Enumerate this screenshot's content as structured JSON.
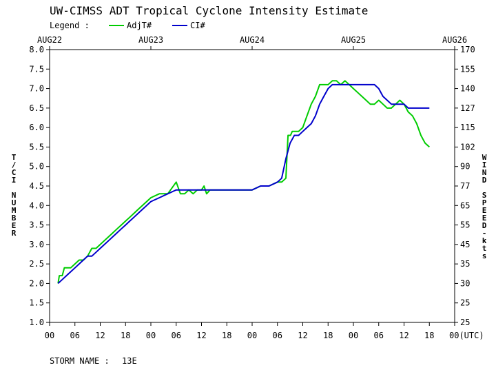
{
  "chart_data": {
    "type": "line",
    "title": "UW-CIMSS ADT Tropical Cyclone Intensity Estimate",
    "legend": {
      "label": "Legend :",
      "placement": "top-left",
      "entries": [
        {
          "name": "AdjT#",
          "color": "#00cc00"
        },
        {
          "name": "CI#",
          "color": "#0000cc"
        }
      ]
    },
    "ylabel": "T/CI NUMBER",
    "y2label": "WIND SPEED-kts",
    "xlabel_suffix": "(UTC)",
    "ylim": [
      1.0,
      8.0
    ],
    "xlim_hours": [
      0,
      96
    ],
    "date_labels": [
      "AUG22",
      "AUG23",
      "AUG24",
      "AUG25",
      "AUG26"
    ],
    "x_tick_labels": [
      "00",
      "06",
      "12",
      "18",
      "00",
      "06",
      "12",
      "18",
      "00",
      "06",
      "12",
      "18",
      "00",
      "06",
      "12",
      "18",
      "00"
    ],
    "y_tick_labels": [
      "1.0",
      "1.5",
      "2.0",
      "2.5",
      "3.0",
      "3.5",
      "4.0",
      "4.5",
      "5.0",
      "5.5",
      "6.0",
      "6.5",
      "7.0",
      "7.5",
      "8.0"
    ],
    "y2_tick_labels": [
      "25",
      "25",
      "30",
      "35",
      "45",
      "55",
      "65",
      "77",
      "90",
      "102",
      "115",
      "127",
      "140",
      "155",
      "170"
    ],
    "grid": false,
    "series": [
      {
        "name": "AdjT#",
        "color": "#00cc00",
        "x": [
          2,
          2.3,
          3,
          3.5,
          5,
          6,
          7,
          8,
          9,
          10,
          11,
          12,
          13,
          14,
          15,
          16,
          17,
          18,
          19,
          20,
          21,
          22,
          23,
          24,
          26,
          28,
          30,
          31,
          32,
          33,
          34,
          35,
          36,
          36.6,
          37.2,
          38,
          39,
          40,
          41,
          42,
          42.6,
          44,
          48,
          50,
          52,
          54,
          55,
          56,
          56.5,
          57.1,
          57.5,
          58,
          59,
          60,
          61,
          62,
          63,
          64,
          65,
          66,
          67,
          68,
          69,
          70,
          71,
          72,
          73,
          74,
          75,
          76,
          77,
          78,
          79,
          80,
          81,
          82,
          83,
          84,
          85,
          86,
          87,
          88,
          89,
          90
        ],
        "y": [
          2.0,
          2.2,
          2.2,
          2.4,
          2.4,
          2.5,
          2.6,
          2.6,
          2.7,
          2.9,
          2.9,
          3.0,
          3.1,
          3.2,
          3.3,
          3.4,
          3.5,
          3.6,
          3.7,
          3.8,
          3.9,
          4.0,
          4.1,
          4.2,
          4.3,
          4.3,
          4.6,
          4.3,
          4.3,
          4.4,
          4.3,
          4.4,
          4.4,
          4.5,
          4.3,
          4.4,
          4.4,
          4.4,
          4.4,
          4.4,
          4.4,
          4.4,
          4.4,
          4.5,
          4.5,
          4.6,
          4.6,
          4.7,
          5.8,
          5.8,
          5.9,
          5.9,
          5.9,
          6.0,
          6.3,
          6.6,
          6.8,
          7.1,
          7.1,
          7.1,
          7.2,
          7.2,
          7.1,
          7.2,
          7.1,
          7.0,
          6.9,
          6.8,
          6.7,
          6.6,
          6.6,
          6.7,
          6.6,
          6.5,
          6.5,
          6.6,
          6.7,
          6.6,
          6.4,
          6.3,
          6.1,
          5.8,
          5.6,
          5.5
        ],
        "y_labels": null
      },
      {
        "name": "CI#",
        "color": "#0000cc",
        "x": [
          2,
          3,
          4,
          5,
          6,
          7,
          8,
          9,
          10,
          11,
          12,
          13,
          14,
          15,
          16,
          17,
          18,
          19,
          20,
          21,
          22,
          23,
          24,
          26,
          28,
          30,
          32,
          34,
          36,
          38,
          40,
          42,
          44,
          46,
          48,
          50,
          52,
          54,
          55,
          56,
          57,
          58,
          59,
          60,
          61,
          62,
          63,
          64,
          65,
          66,
          67,
          68,
          69,
          70,
          71,
          72,
          73,
          74,
          75,
          76,
          77,
          78,
          79,
          80,
          81,
          82,
          83,
          84,
          85,
          86,
          87,
          88,
          89,
          90
        ],
        "y": [
          2.0,
          2.1,
          2.2,
          2.3,
          2.4,
          2.5,
          2.6,
          2.7,
          2.7,
          2.8,
          2.9,
          3.0,
          3.1,
          3.2,
          3.3,
          3.4,
          3.5,
          3.6,
          3.7,
          3.8,
          3.9,
          4.0,
          4.1,
          4.2,
          4.3,
          4.4,
          4.4,
          4.4,
          4.4,
          4.4,
          4.4,
          4.4,
          4.4,
          4.4,
          4.4,
          4.5,
          4.5,
          4.6,
          4.7,
          5.2,
          5.6,
          5.8,
          5.8,
          5.9,
          6.0,
          6.1,
          6.3,
          6.6,
          6.8,
          7.0,
          7.1,
          7.1,
          7.1,
          7.1,
          7.1,
          7.1,
          7.1,
          7.1,
          7.1,
          7.1,
          7.1,
          7.0,
          6.8,
          6.7,
          6.6,
          6.6,
          6.6,
          6.6,
          6.5,
          6.5,
          6.5,
          6.5,
          6.5,
          6.5
        ]
      }
    ]
  },
  "storm": {
    "label": "STORM NAME :",
    "name": "13E"
  }
}
